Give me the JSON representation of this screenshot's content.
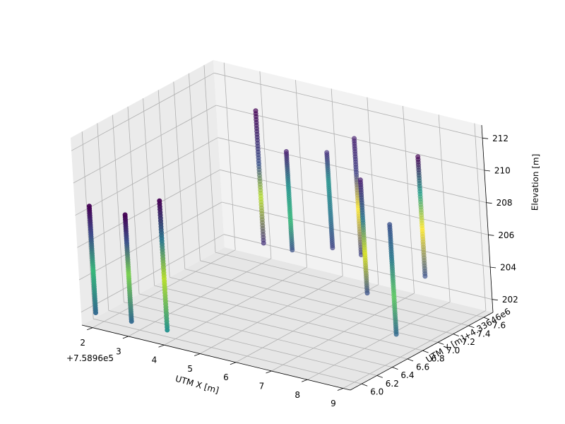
{
  "chart_data": {
    "type": "scatter",
    "projection": "3d",
    "xlabel": "UTM X [m]",
    "ylabel": "UTM Y [m]",
    "zlabel": "Elevation [m]",
    "x_offset_label": "+7.5896e5",
    "y_offset_label": "+4.33646e6",
    "xlim": [
      1.7,
      9.2
    ],
    "ylim": [
      5.85,
      7.72
    ],
    "zlim": [
      201.2,
      212.8
    ],
    "x_ticks": [
      "2",
      "3",
      "4",
      "5",
      "6",
      "7",
      "8",
      "9"
    ],
    "y_ticks": [
      "6.0",
      "6.2",
      "6.4",
      "6.6",
      "6.8",
      "7.0",
      "7.2",
      "7.4",
      "7.6"
    ],
    "z_ticks": [
      "202",
      "204",
      "206",
      "208",
      "210",
      "212"
    ],
    "grid": true,
    "colormap": "viridis",
    "depth_shade": true,
    "pane_colors": [
      "#f2f2f2",
      "#ebebeb",
      "#e6e6e6"
    ],
    "boreholes": [
      {
        "x": 2.0,
        "y": 5.9,
        "z_bottom": 202.0,
        "z_top": 208.6,
        "colors": [
          "#31688e",
          "#35b779",
          "#3e4989",
          "#440154"
        ],
        "stops": [
          0.0,
          0.4,
          0.75,
          1.0
        ]
      },
      {
        "x": 3.0,
        "y": 5.9,
        "z_bottom": 202.0,
        "z_top": 208.6,
        "colors": [
          "#31688e",
          "#7ad151",
          "#3b528b",
          "#440154"
        ],
        "stops": [
          0.0,
          0.45,
          0.75,
          1.0
        ]
      },
      {
        "x": 4.0,
        "y": 5.9,
        "z_bottom": 202.0,
        "z_top": 210.0,
        "colors": [
          "#21918c",
          "#b5de2b",
          "#2a788e",
          "#440154"
        ],
        "stops": [
          0.0,
          0.4,
          0.7,
          1.0
        ]
      },
      {
        "x": 4.2,
        "y": 7.1,
        "z_bottom": 204.4,
        "z_top": 212.6,
        "colors": [
          "#46327e",
          "#b5de2b",
          "#3b528b",
          "#440154"
        ],
        "stops": [
          0.0,
          0.35,
          0.6,
          1.0
        ]
      },
      {
        "x": 5.0,
        "y": 7.1,
        "z_bottom": 204.4,
        "z_top": 210.5,
        "colors": [
          "#3b528b",
          "#35b779",
          "#21918c",
          "#481f70"
        ],
        "stops": [
          0.0,
          0.3,
          0.65,
          1.0
        ]
      },
      {
        "x": 5.7,
        "y": 7.3,
        "z_bottom": 204.4,
        "z_top": 210.3,
        "colors": [
          "#414487",
          "#2a788e",
          "#21918c",
          "#46327e"
        ],
        "stops": [
          0.0,
          0.35,
          0.7,
          1.0
        ]
      },
      {
        "x": 6.5,
        "y": 7.3,
        "z_bottom": 204.4,
        "z_top": 211.6,
        "colors": [
          "#414487",
          "#fde725",
          "#414487",
          "#481f70"
        ],
        "stops": [
          0.0,
          0.4,
          0.7,
          1.0
        ]
      },
      {
        "x": 7.5,
        "y": 6.9,
        "z_bottom": 203.6,
        "z_top": 210.6,
        "colors": [
          "#3b528b",
          "#d8e219",
          "#2a788e",
          "#481f70"
        ],
        "stops": [
          0.0,
          0.35,
          0.65,
          1.0
        ]
      },
      {
        "x": 8.5,
        "y": 7.2,
        "z_bottom": 204.4,
        "z_top": 211.8,
        "colors": [
          "#3b528b",
          "#fde725",
          "#1f9e89",
          "#440154"
        ],
        "stops": [
          0.0,
          0.4,
          0.7,
          1.0
        ]
      },
      {
        "x": 8.7,
        "y": 6.7,
        "z_bottom": 202.2,
        "z_top": 209.0,
        "colors": [
          "#31688e",
          "#5ec962",
          "#2a788e",
          "#3b528b"
        ],
        "stops": [
          0.0,
          0.35,
          0.7,
          1.0
        ]
      }
    ]
  }
}
